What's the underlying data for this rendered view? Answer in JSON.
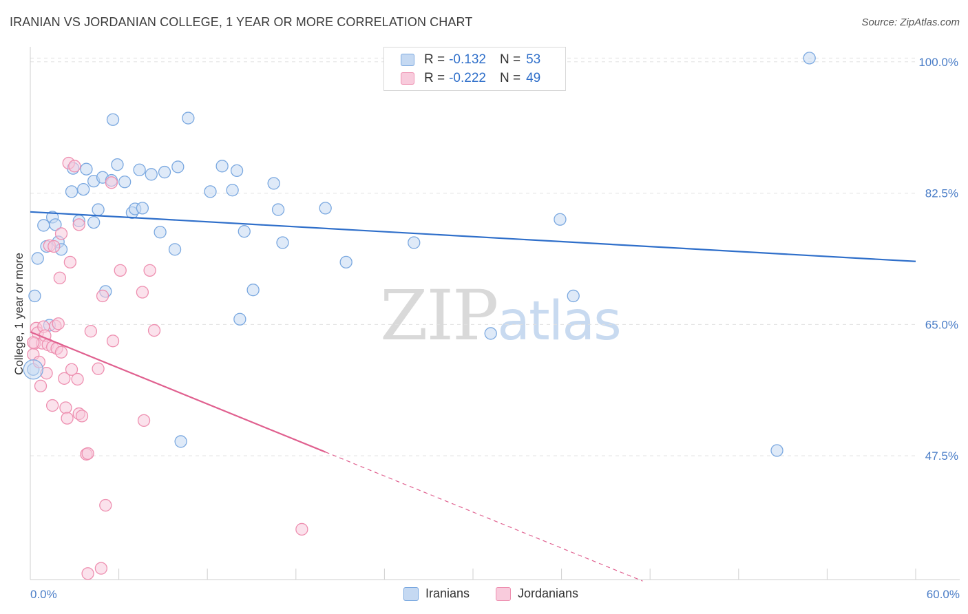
{
  "chart_data": {
    "type": "scatter",
    "title": "IRANIAN VS JORDANIAN COLLEGE, 1 YEAR OR MORE CORRELATION CHART",
    "source": "Source: ZipAtlas.com",
    "xlabel": "",
    "ylabel": "College, 1 year or more",
    "xlim": [
      0,
      60
    ],
    "ylim": [
      31,
      102
    ],
    "y_ticks": [
      {
        "value": 100,
        "label": "100.0%"
      },
      {
        "value": 82.5,
        "label": "82.5%"
      },
      {
        "value": 65,
        "label": "65.0%"
      },
      {
        "value": 47.5,
        "label": "47.5%"
      }
    ],
    "x_tick_labels": {
      "min": "0.0%",
      "max": "60.0%"
    },
    "watermark": {
      "zip": "ZIP",
      "atlas": "atlas"
    },
    "legend": {
      "r_label": "R =",
      "n_label": "N =",
      "entries": [
        {
          "r": "-0.132",
          "n": "53"
        },
        {
          "r": "-0.222",
          "n": "49"
        }
      ]
    },
    "series": [
      {
        "name": "Iranians",
        "color": "#7aa8e0",
        "fill": "#c5d9f2",
        "trend_color": "#2f6fca",
        "trend": {
          "x0": 0,
          "y0": 80.0,
          "x1": 60,
          "y1": 73.4
        },
        "points": [
          [
            0.2,
            59.0
          ],
          [
            0.3,
            68.8
          ],
          [
            0.5,
            73.8
          ],
          [
            0.9,
            78.2
          ],
          [
            1.1,
            75.4
          ],
          [
            1.3,
            64.9
          ],
          [
            1.5,
            79.3
          ],
          [
            1.7,
            78.3
          ],
          [
            1.9,
            76.0
          ],
          [
            2.1,
            75.0
          ],
          [
            2.9,
            85.8
          ],
          [
            2.8,
            82.7
          ],
          [
            3.3,
            78.8
          ],
          [
            3.6,
            83.0
          ],
          [
            3.8,
            85.7
          ],
          [
            4.3,
            84.1
          ],
          [
            4.3,
            78.6
          ],
          [
            4.6,
            80.3
          ],
          [
            4.9,
            84.6
          ],
          [
            5.1,
            69.4
          ],
          [
            5.5,
            84.2
          ],
          [
            5.6,
            92.3
          ],
          [
            5.9,
            86.3
          ],
          [
            6.4,
            84.0
          ],
          [
            6.9,
            79.9
          ],
          [
            7.1,
            80.4
          ],
          [
            7.4,
            85.6
          ],
          [
            7.6,
            80.5
          ],
          [
            8.2,
            85.0
          ],
          [
            8.8,
            77.3
          ],
          [
            9.1,
            85.3
          ],
          [
            9.8,
            75.0
          ],
          [
            10.0,
            86.0
          ],
          [
            10.2,
            49.4
          ],
          [
            10.7,
            92.5
          ],
          [
            12.2,
            82.7
          ],
          [
            13.0,
            86.1
          ],
          [
            13.7,
            82.9
          ],
          [
            14.0,
            85.5
          ],
          [
            14.2,
            65.7
          ],
          [
            14.5,
            77.4
          ],
          [
            15.1,
            69.6
          ],
          [
            16.5,
            83.8
          ],
          [
            16.8,
            80.3
          ],
          [
            17.1,
            75.9
          ],
          [
            20.0,
            80.5
          ],
          [
            21.4,
            73.3
          ],
          [
            26.0,
            75.9
          ],
          [
            31.2,
            63.8
          ],
          [
            35.9,
            79.0
          ],
          [
            36.8,
            68.8
          ],
          [
            50.6,
            48.2
          ],
          [
            52.8,
            100.5
          ]
        ]
      },
      {
        "name": "Jordanians",
        "color": "#ee8fb0",
        "fill": "#f8cbdc",
        "trend_color": "#e0608f",
        "trend": {
          "x0": 0,
          "y0": 64.0,
          "x1": 20.0,
          "y1": 48.0
        },
        "trend_dashed": {
          "x0": 20.0,
          "y0": 48.0,
          "x1": 41.5,
          "y1": 30.8
        },
        "points": [
          [
            0.2,
            61.0
          ],
          [
            0.3,
            62.5
          ],
          [
            0.4,
            64.5
          ],
          [
            0.5,
            63.9
          ],
          [
            0.6,
            60.0
          ],
          [
            0.7,
            56.8
          ],
          [
            0.8,
            62.5
          ],
          [
            0.9,
            64.7
          ],
          [
            1.0,
            63.5
          ],
          [
            1.1,
            58.5
          ],
          [
            1.2,
            62.3
          ],
          [
            1.3,
            75.5
          ],
          [
            1.5,
            62.0
          ],
          [
            1.5,
            54.2
          ],
          [
            1.6,
            75.4
          ],
          [
            1.7,
            64.8
          ],
          [
            1.8,
            61.8
          ],
          [
            1.9,
            65.1
          ],
          [
            2.0,
            71.2
          ],
          [
            2.1,
            61.3
          ],
          [
            2.1,
            77.1
          ],
          [
            2.3,
            57.8
          ],
          [
            2.4,
            53.9
          ],
          [
            2.5,
            52.5
          ],
          [
            2.6,
            86.5
          ],
          [
            2.7,
            73.3
          ],
          [
            2.8,
            59.0
          ],
          [
            3.0,
            86.1
          ],
          [
            3.2,
            57.7
          ],
          [
            3.3,
            78.3
          ],
          [
            3.3,
            53.1
          ],
          [
            3.5,
            52.8
          ],
          [
            3.8,
            47.7
          ],
          [
            3.9,
            47.8
          ],
          [
            3.9,
            31.8
          ],
          [
            4.1,
            64.1
          ],
          [
            4.6,
            59.1
          ],
          [
            4.8,
            32.5
          ],
          [
            4.9,
            68.8
          ],
          [
            5.1,
            40.9
          ],
          [
            5.6,
            62.8
          ],
          [
            5.5,
            83.9
          ],
          [
            6.1,
            72.2
          ],
          [
            7.6,
            69.3
          ],
          [
            7.7,
            52.2
          ],
          [
            8.1,
            72.2
          ],
          [
            8.4,
            64.2
          ],
          [
            18.4,
            37.7
          ],
          [
            0.2,
            62.6
          ]
        ]
      }
    ]
  }
}
